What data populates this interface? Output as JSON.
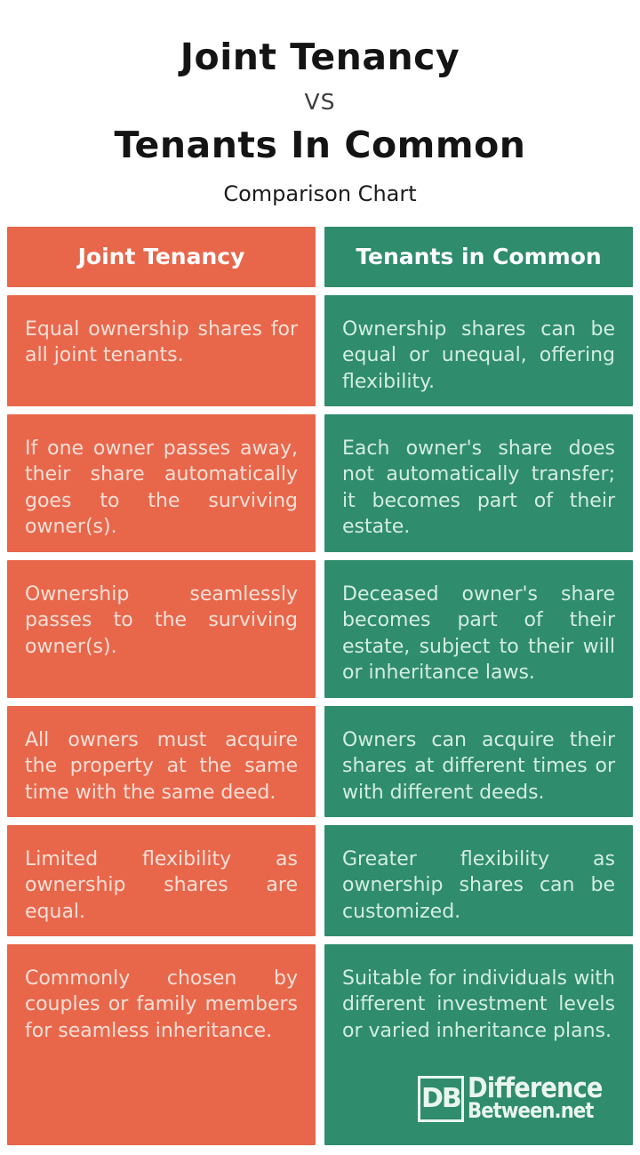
{
  "page": {
    "background": "#ffffff"
  },
  "header": {
    "title_line1": "Joint Tenancy",
    "vs_label": "VS",
    "title_line2": "Tenants In Common",
    "subtitle": "Comparison Chart"
  },
  "colors": {
    "orange_column": "#E8674B",
    "green_column": "#2F8C6D",
    "header_text": "#FFFFFF",
    "text_on_orange": "#F8DFD7",
    "text_on_green": "#D3EDE1",
    "title_text": "#141414"
  },
  "chart_data": {
    "type": "table",
    "title": "Joint Tenancy VS Tenants In Common",
    "subtitle": "Comparison Chart",
    "columns": [
      "Joint Tenancy",
      "Tenants in Common"
    ],
    "rows": [
      [
        "Equal ownership shares for all joint tenants.",
        "Ownership shares can be equal or unequal, offering flexibility."
      ],
      [
        "If one owner passes away, their share automatically goes to the surviving owner(s).",
        "Each owner's share does not automatically transfer; it becomes part of their estate."
      ],
      [
        "Ownership seamlessly passes to the surviving owner(s).",
        "Deceased owner's share becomes part of their estate, subject to their will or inheritance laws."
      ],
      [
        "All owners must acquire the property at the same time with the same deed.",
        "Owners can acquire their shares at different times or with different deeds."
      ],
      [
        "Limited flexibility as ownership shares are equal.",
        "Greater flexibility as ownership shares can be customized."
      ],
      [
        "Commonly chosen by couples or family members for seamless inheritance.",
        "Suitable for individuals with different investment levels or varied inheritance plans."
      ]
    ]
  },
  "logo": {
    "initials": "DB",
    "line1": "Difference",
    "line2": "Between.net"
  }
}
